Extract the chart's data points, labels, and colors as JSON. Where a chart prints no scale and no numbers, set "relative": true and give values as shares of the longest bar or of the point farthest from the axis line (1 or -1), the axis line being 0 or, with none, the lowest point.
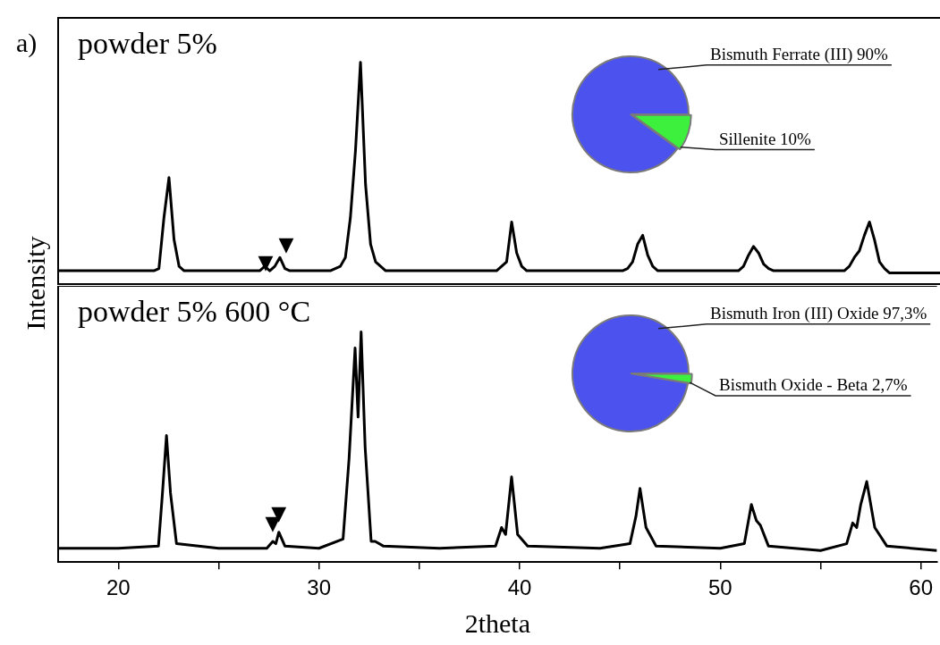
{
  "chart_data": [
    {
      "type": "line",
      "title": "a)",
      "ylabel": "Intensity",
      "relative": true,
      "tick_labels": false,
      "grid": false,
      "legend": false,
      "marker": "none",
      "line_style": "solid",
      "annotations": [
        "powder 5%",
        "▼",
        "▼"
      ],
      "categories": [
        null,
        null,
        null,
        null,
        null,
        null,
        null,
        null,
        null,
        null,
        null,
        null,
        null,
        null,
        null,
        null,
        null,
        null,
        null,
        null,
        null,
        null,
        null,
        null,
        null,
        null,
        null,
        null,
        null,
        null,
        null,
        null,
        null,
        null,
        null,
        null,
        null,
        null,
        null,
        null,
        null,
        null,
        null,
        null,
        null,
        null,
        null,
        null,
        null,
        null,
        null,
        null,
        null,
        null,
        null,
        null,
        null,
        null,
        null,
        null,
        null,
        null,
        null,
        null,
        null,
        null,
        null,
        null,
        null,
        null,
        null,
        null,
        null,
        null,
        null,
        null,
        null,
        null,
        null,
        null,
        null,
        null,
        null,
        null,
        null,
        null,
        null,
        null,
        null,
        null,
        null,
        null,
        null,
        null,
        null,
        null,
        null,
        null,
        null,
        null,
        null,
        null,
        null,
        null,
        null,
        null,
        null,
        null,
        null,
        null,
        null,
        null,
        null,
        null,
        null,
        null,
        null,
        null,
        null,
        null,
        null,
        null,
        null,
        null,
        null,
        null,
        null,
        null,
        null,
        null,
        null,
        null,
        null,
        null,
        null,
        null,
        null,
        null,
        null,
        null,
        null,
        null,
        null,
        null,
        null,
        null,
        null,
        null,
        null,
        null,
        null,
        null,
        null,
        null,
        null,
        null,
        null,
        null,
        null,
        null,
        null,
        null,
        null,
        null,
        null,
        null,
        null,
        null,
        null,
        null,
        null,
        null,
        null,
        null,
        null,
        null
      ],
      "series": [
        {
          "color": "#000000",
          "values": [
            0.06,
            0.06,
            0.06,
            0.06,
            0.06,
            0.06,
            0.06,
            0.06,
            0.06,
            0.06,
            0.06,
            0.06,
            0.06,
            0.06,
            0.06,
            0.06,
            0.06,
            0.06,
            0.06,
            0.06,
            0.07,
            0.3,
            0.48,
            0.2,
            0.08,
            0.06,
            0.06,
            0.06,
            0.06,
            0.06,
            0.06,
            0.06,
            0.06,
            0.06,
            0.06,
            0.06,
            0.06,
            0.06,
            0.06,
            0.06,
            0.06,
            0.08,
            0.06,
            0.08,
            0.12,
            0.07,
            0.06,
            0.06,
            0.06,
            0.06,
            0.06,
            0.06,
            0.06,
            0.06,
            0.06,
            0.07,
            0.08,
            0.12,
            0.3,
            0.6,
            1,
            0.45,
            0.18,
            0.1,
            0.08,
            0.06,
            0.06,
            0.06,
            0.06,
            0.06,
            0.06,
            0.06,
            0.06,
            0.06,
            0.06,
            0.06,
            0.06,
            0.06,
            0.06,
            0.06,
            0.06,
            0.06,
            0.06,
            0.06,
            0.06,
            0.06,
            0.06,
            0.06,
            0.08,
            0.1,
            0.28,
            0.14,
            0.08,
            0.06,
            0.06,
            0.06,
            0.06,
            0.06,
            0.06,
            0.06,
            0.06,
            0.06,
            0.06,
            0.06,
            0.06,
            0.06,
            0.06,
            0.06,
            0.06,
            0.06,
            0.06,
            0.06,
            0.06,
            0.07,
            0.1,
            0.18,
            0.22,
            0.13,
            0.08,
            0.06,
            0.06,
            0.06,
            0.06,
            0.06,
            0.06,
            0.06,
            0.06,
            0.06,
            0.06,
            0.06,
            0.06,
            0.06,
            0.06,
            0.06,
            0.06,
            0.06,
            0.08,
            0.13,
            0.17,
            0.14,
            0.09,
            0.07,
            0.06,
            0.06,
            0.06,
            0.06,
            0.06,
            0.06,
            0.06,
            0.06,
            0.06,
            0.06,
            0.06,
            0.06,
            0.06,
            0.06,
            0.06,
            0.08,
            0.12,
            0.15,
            0.22,
            0.28,
            0.2,
            0.1,
            0.07,
            0.05,
            0.05,
            0.05,
            0.05,
            0.05,
            0.05,
            0.05,
            0.05,
            0.05,
            0.05,
            0.05
          ]
        }
      ]
    },
    {
      "type": "pie",
      "categories": [
        "Bismuth Ferrate (III)",
        "Sillenite"
      ],
      "values": [
        90,
        10
      ],
      "value_labels": [
        "90%",
        "10%"
      ],
      "colors": [
        "#4b52ee",
        "#3ef03e"
      ]
    },
    {
      "type": "line",
      "xlabel": "2theta",
      "relative": true,
      "tick_labels": "x",
      "xlim": [
        17,
        60.8
      ],
      "xticks": [
        20,
        {
          "value": 25,
          "label": null
        },
        30,
        {
          "value": 35,
          "label": null
        },
        40,
        {
          "value": 45,
          "label": null
        },
        50,
        {
          "value": 55,
          "label": null
        },
        60
      ],
      "grid": false,
      "legend": false,
      "marker": "none",
      "line_style": "solid",
      "annotations": [
        "powder 5% 600 °C",
        {
          "text": "▼",
          "x": 27.7,
          "y": 0.09
        },
        {
          "text": "▼",
          "x": 28.0,
          "y": 0.13
        }
      ],
      "series": [
        {
          "color": "#000000",
          "x": [
            17,
            20,
            22.0,
            22.2,
            22.4,
            22.6,
            22.9,
            25,
            27.4,
            27.7,
            27.85,
            28.0,
            28.3,
            30,
            31.2,
            31.5,
            31.8,
            31.95,
            32.1,
            32.3,
            32.6,
            32.8,
            33.2,
            36,
            38.8,
            39.1,
            39.3,
            39.6,
            39.9,
            40.4,
            44,
            45.5,
            45.8,
            46.0,
            46.3,
            46.8,
            50,
            51.2,
            51.55,
            51.8,
            52.0,
            52.4,
            55,
            56.3,
            56.6,
            56.8,
            57.0,
            57.3,
            57.7,
            58.3,
            60.8
          ],
          "values": [
            0.06,
            0.06,
            0.07,
            0.3,
            0.55,
            0.3,
            0.08,
            0.06,
            0.06,
            0.09,
            0.08,
            0.13,
            0.07,
            0.06,
            0.1,
            0.45,
            0.93,
            0.63,
            1,
            0.5,
            0.09,
            0.09,
            0.07,
            0.06,
            0.07,
            0.15,
            0.12,
            0.37,
            0.12,
            0.07,
            0.06,
            0.08,
            0.2,
            0.32,
            0.15,
            0.07,
            0.06,
            0.08,
            0.25,
            0.18,
            0.16,
            0.07,
            0.05,
            0.08,
            0.17,
            0.15,
            0.25,
            0.35,
            0.15,
            0.07,
            0.05
          ]
        }
      ]
    },
    {
      "type": "pie",
      "categories": [
        "Bismuth Iron (III) Oxide",
        "Bismuth Oxide - Beta"
      ],
      "values": [
        97.3,
        2.7
      ],
      "value_labels": [
        "97,3%",
        "2,7%"
      ],
      "colors": [
        "#4b52ee",
        "#3ef03e"
      ]
    }
  ]
}
